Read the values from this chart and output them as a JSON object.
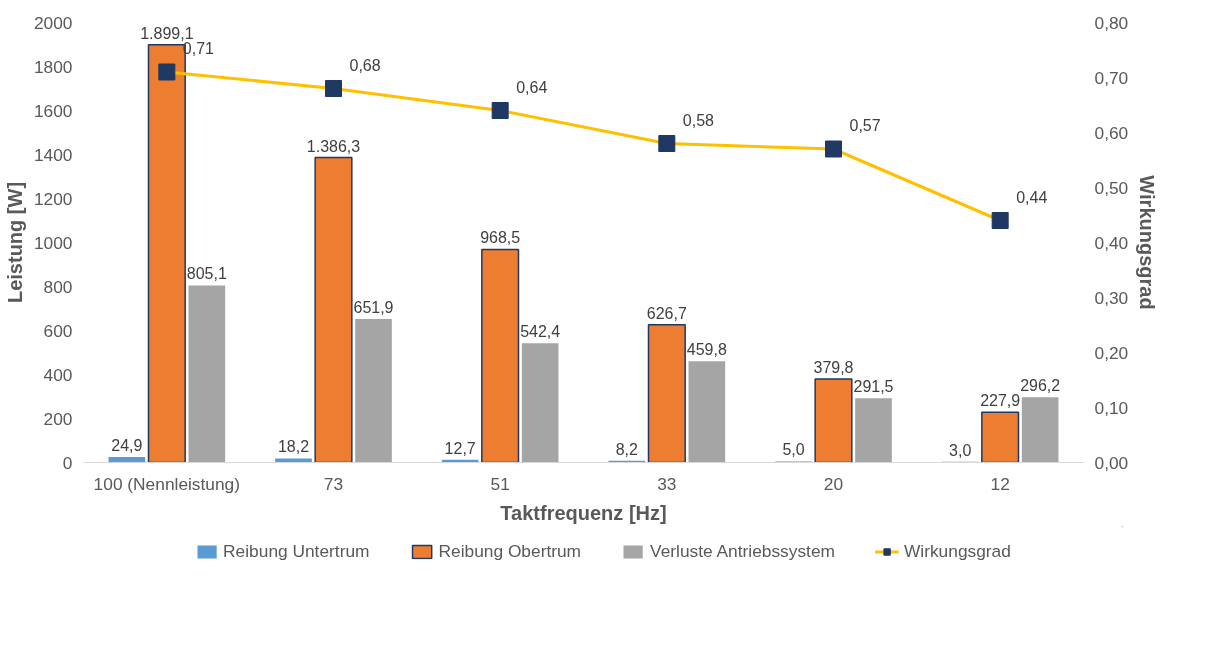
{
  "chart_data": {
    "type": "bar",
    "xlabel": "Taktfrequenz [Hz]",
    "ylabel": "Leistung [W]",
    "y2label": "Wirkungsgrad",
    "categories": [
      "100 (Nennleistung)",
      "73",
      "51",
      "33",
      "20",
      "12"
    ],
    "series": [
      {
        "name": "Reibung Untertrum",
        "color": "#5b9bd5",
        "values": [
          24.9,
          18.2,
          12.7,
          8.2,
          5.0,
          3.0
        ],
        "value_labels": [
          "24,9",
          "18,2",
          "12,7",
          "8,2",
          "5,0",
          "3,0"
        ]
      },
      {
        "name": "Reibung Obertrum",
        "color": "#ed7d31",
        "values": [
          1899.1,
          1386.3,
          968.5,
          626.7,
          379.8,
          227.9
        ],
        "value_labels": [
          "1.899,1",
          "1.386,3",
          "968,5",
          "626,7",
          "379,8",
          "227,9"
        ]
      },
      {
        "name": "Verluste Antriebssystem",
        "color": "#a5a5a5",
        "values": [
          805.1,
          651.9,
          542.4,
          459.8,
          291.5,
          296.2
        ],
        "value_labels": [
          "805,1",
          "651,9",
          "542,4",
          "459,8",
          "291,5",
          "296,2"
        ]
      },
      {
        "name": "Wirkungsgrad",
        "type": "line",
        "axis": "y2",
        "color": "#ffc000",
        "marker": "square",
        "values": [
          0.71,
          0.68,
          0.64,
          0.58,
          0.57,
          0.44
        ],
        "value_labels": [
          "0,71",
          "0,68",
          "0,64",
          "0,58",
          "0,57",
          "0,44"
        ]
      }
    ],
    "ylim": [
      0,
      2000
    ],
    "yticks": [
      0,
      200,
      400,
      600,
      800,
      1000,
      1200,
      1400,
      1600,
      1800,
      2000
    ],
    "y2lim": [
      0,
      0.8
    ],
    "y2ticks": [
      {
        "value": 0,
        "label": "0,00"
      },
      {
        "value": 0.1,
        "label": "0,10"
      },
      {
        "value": 0.2,
        "label": "0,20"
      },
      {
        "value": 0.3,
        "label": "0,30"
      },
      {
        "value": 0.4,
        "label": "0,40"
      },
      {
        "value": 0.5,
        "label": "0,50"
      },
      {
        "value": 0.6,
        "label": "0,60"
      },
      {
        "value": 0.7,
        "label": "0,70"
      },
      {
        "value": 0.8,
        "label": "0,80"
      }
    ],
    "grid": false,
    "legend": "bottom"
  }
}
